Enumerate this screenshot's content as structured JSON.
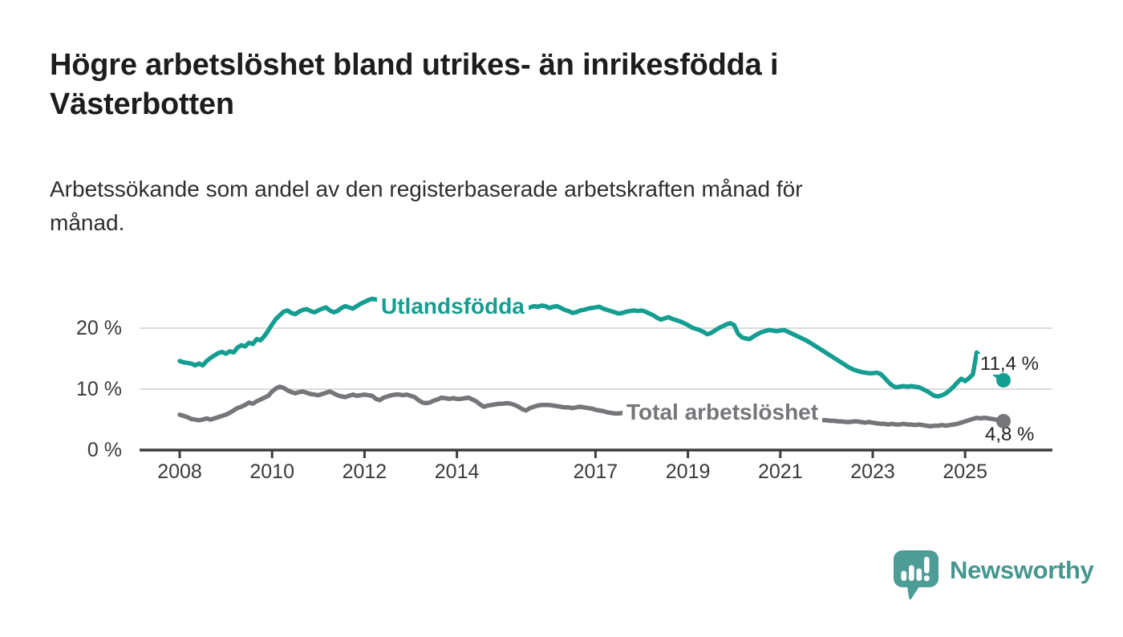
{
  "title": {
    "lines": [
      "Högre arbetslöshet bland utrikes- än inrikesfödda i",
      "Västerbotten"
    ]
  },
  "subtitle": {
    "lines": [
      "Arbetssökande som andel av den registerbaserade arbetskraften månad för",
      "månad."
    ]
  },
  "branding": {
    "name": "Newsworthy",
    "icon": "newsworthy-speech-bubble-bar-chart-icon",
    "icon_color": "#4e9c96",
    "text_color": "#45968f"
  },
  "chart_data": {
    "type": "line",
    "title": "Högre arbetslöshet bland utrikes- än inrikesfödda i Västerbotten",
    "subtitle": "Arbetssökande som andel av den registerbaserade arbetskraften månad för månad.",
    "unit": "%",
    "frequency": "monthly",
    "x_start": {
      "year": 2008,
      "month": 1
    },
    "x_end": {
      "year": 2025,
      "month": 11
    },
    "grid": "horizontal-only",
    "legend_position": "inline-labels-on-lines",
    "ylim": [
      0,
      26.3
    ],
    "y_ticks": [
      {
        "value": 0,
        "label": "0 %"
      },
      {
        "value": 10,
        "label": "10 %"
      },
      {
        "value": 20,
        "label": "20 %"
      }
    ],
    "x_ticks": [
      {
        "year": 2008,
        "label": "2008"
      },
      {
        "year": 2010,
        "label": "2010"
      },
      {
        "year": 2012,
        "label": "2012"
      },
      {
        "year": 2014,
        "label": "2014"
      },
      {
        "year": 2017,
        "label": "2017"
      },
      {
        "year": 2019,
        "label": "2019"
      },
      {
        "year": 2021,
        "label": "2021"
      },
      {
        "year": 2023,
        "label": "2023"
      },
      {
        "year": 2025,
        "label": "2025"
      }
    ],
    "style": {
      "grid_color": "#dcdcdc",
      "axis_color": "#3d3d3d",
      "tick_label_color": "#3a3a3a",
      "line_width": 5.5
    },
    "series": [
      {
        "name": "Utlandsfödda",
        "color": "#149e91",
        "end_label": "11,4 %",
        "end_value": 11.4,
        "values": [
          14.6,
          14.4,
          14.3,
          14.2,
          13.9,
          14.2,
          13.9,
          14.6,
          15.1,
          15.5,
          15.9,
          16.1,
          15.8,
          16.2,
          16.0,
          16.8,
          17.2,
          17.0,
          17.6,
          17.4,
          18.2,
          18.0,
          18.7,
          19.6,
          20.6,
          21.5,
          22.1,
          22.7,
          22.9,
          22.5,
          22.3,
          22.7,
          23.0,
          23.1,
          22.8,
          22.6,
          22.9,
          23.2,
          23.4,
          22.9,
          22.6,
          22.8,
          23.3,
          23.6,
          23.4,
          23.2,
          23.6,
          24.0,
          24.3,
          24.6,
          24.8,
          24.7,
          24.5,
          24.6,
          24.4,
          24.5,
          24.7,
          24.6,
          24.4,
          24.5,
          24.3,
          24.4,
          24.6,
          24.4,
          24.2,
          24.3,
          24.1,
          24.2,
          24.4,
          24.3,
          24.1,
          24.0,
          23.9,
          24.1,
          24.2,
          24.0,
          23.8,
          23.9,
          23.7,
          23.8,
          24.0,
          23.9,
          23.7,
          23.6,
          23.5,
          23.7,
          23.8,
          23.6,
          23.4,
          23.5,
          23.3,
          23.4,
          23.6,
          23.5,
          23.7,
          23.6,
          23.3,
          23.5,
          23.6,
          23.3,
          23.0,
          22.8,
          22.5,
          22.6,
          22.9,
          23.0,
          23.2,
          23.3,
          23.4,
          23.5,
          23.2,
          23.0,
          22.8,
          22.6,
          22.4,
          22.5,
          22.7,
          22.8,
          22.9,
          22.8,
          22.9,
          22.7,
          22.4,
          22.1,
          21.7,
          21.4,
          21.6,
          21.8,
          21.5,
          21.3,
          21.1,
          20.8,
          20.5,
          20.1,
          19.9,
          19.7,
          19.4,
          19.0,
          19.2,
          19.6,
          20.0,
          20.3,
          20.6,
          20.8,
          20.5,
          19.1,
          18.5,
          18.3,
          18.2,
          18.6,
          19.0,
          19.3,
          19.5,
          19.7,
          19.6,
          19.5,
          19.6,
          19.7,
          19.4,
          19.1,
          18.8,
          18.5,
          18.2,
          17.9,
          17.5,
          17.1,
          16.7,
          16.3,
          15.9,
          15.5,
          15.1,
          14.7,
          14.3,
          13.9,
          13.5,
          13.2,
          13.0,
          12.8,
          12.7,
          12.6,
          12.6,
          12.7,
          12.5,
          11.9,
          11.2,
          10.6,
          10.3,
          10.4,
          10.5,
          10.4,
          10.5,
          10.4,
          10.3,
          10.0,
          9.7,
          9.3,
          8.9,
          8.8,
          9.0,
          9.3,
          9.8,
          10.4,
          11.1,
          11.7,
          11.3,
          11.8,
          12.4,
          16.0,
          15.3,
          14.4,
          13.6,
          12.9,
          12.3,
          11.8,
          11.4
        ]
      },
      {
        "name": "Total arbetslöshet",
        "color": "#75757a",
        "end_label": "4,8 %",
        "end_value": 4.8,
        "values": [
          5.8,
          5.6,
          5.4,
          5.1,
          5.0,
          4.9,
          5.0,
          5.2,
          5.0,
          5.2,
          5.4,
          5.6,
          5.8,
          6.1,
          6.5,
          6.9,
          7.1,
          7.4,
          7.8,
          7.6,
          8.0,
          8.3,
          8.6,
          8.9,
          9.6,
          10.1,
          10.4,
          10.2,
          9.8,
          9.5,
          9.3,
          9.5,
          9.6,
          9.4,
          9.2,
          9.1,
          9.0,
          9.2,
          9.4,
          9.6,
          9.3,
          9.0,
          8.8,
          8.7,
          8.9,
          9.1,
          8.9,
          9.0,
          9.1,
          9.0,
          8.9,
          8.4,
          8.2,
          8.6,
          8.8,
          9.0,
          9.1,
          9.1,
          9.0,
          9.1,
          8.9,
          8.7,
          8.2,
          7.8,
          7.7,
          7.8,
          8.1,
          8.3,
          8.6,
          8.5,
          8.4,
          8.5,
          8.4,
          8.4,
          8.5,
          8.6,
          8.3,
          8.0,
          7.5,
          7.1,
          7.3,
          7.4,
          7.5,
          7.6,
          7.6,
          7.7,
          7.6,
          7.4,
          7.1,
          6.7,
          6.5,
          6.9,
          7.1,
          7.3,
          7.4,
          7.4,
          7.4,
          7.3,
          7.2,
          7.1,
          7.0,
          7.0,
          6.9,
          7.0,
          7.1,
          7.0,
          6.9,
          6.8,
          6.6,
          6.5,
          6.4,
          6.2,
          6.1,
          6.0,
          6.0,
          6.1,
          6.2,
          6.1,
          6.0,
          6.0,
          5.9,
          5.8,
          5.7,
          5.6,
          5.5,
          5.4,
          5.5,
          5.6,
          5.5,
          5.4,
          5.4,
          5.3,
          5.3,
          5.2,
          5.2,
          5.1,
          5.0,
          5.0,
          5.1,
          5.2,
          5.3,
          5.4,
          5.5,
          5.6,
          5.8,
          6.0,
          6.4,
          6.8,
          7.0,
          7.1,
          7.0,
          6.9,
          6.8,
          6.6,
          6.4,
          6.3,
          6.2,
          6.1,
          6.0,
          5.9,
          5.7,
          5.6,
          5.5,
          5.4,
          5.2,
          5.1,
          5.0,
          4.9,
          4.9,
          4.8,
          4.8,
          4.7,
          4.7,
          4.6,
          4.6,
          4.7,
          4.7,
          4.6,
          4.5,
          4.6,
          4.5,
          4.4,
          4.3,
          4.3,
          4.2,
          4.3,
          4.2,
          4.2,
          4.3,
          4.2,
          4.2,
          4.1,
          4.2,
          4.1,
          4.0,
          3.9,
          4.0,
          4.0,
          4.1,
          4.0,
          4.1,
          4.2,
          4.3,
          4.5,
          4.7,
          4.9,
          5.1,
          5.3,
          5.2,
          5.3,
          5.2,
          5.1,
          5.0,
          4.9,
          4.8
        ]
      }
    ]
  }
}
